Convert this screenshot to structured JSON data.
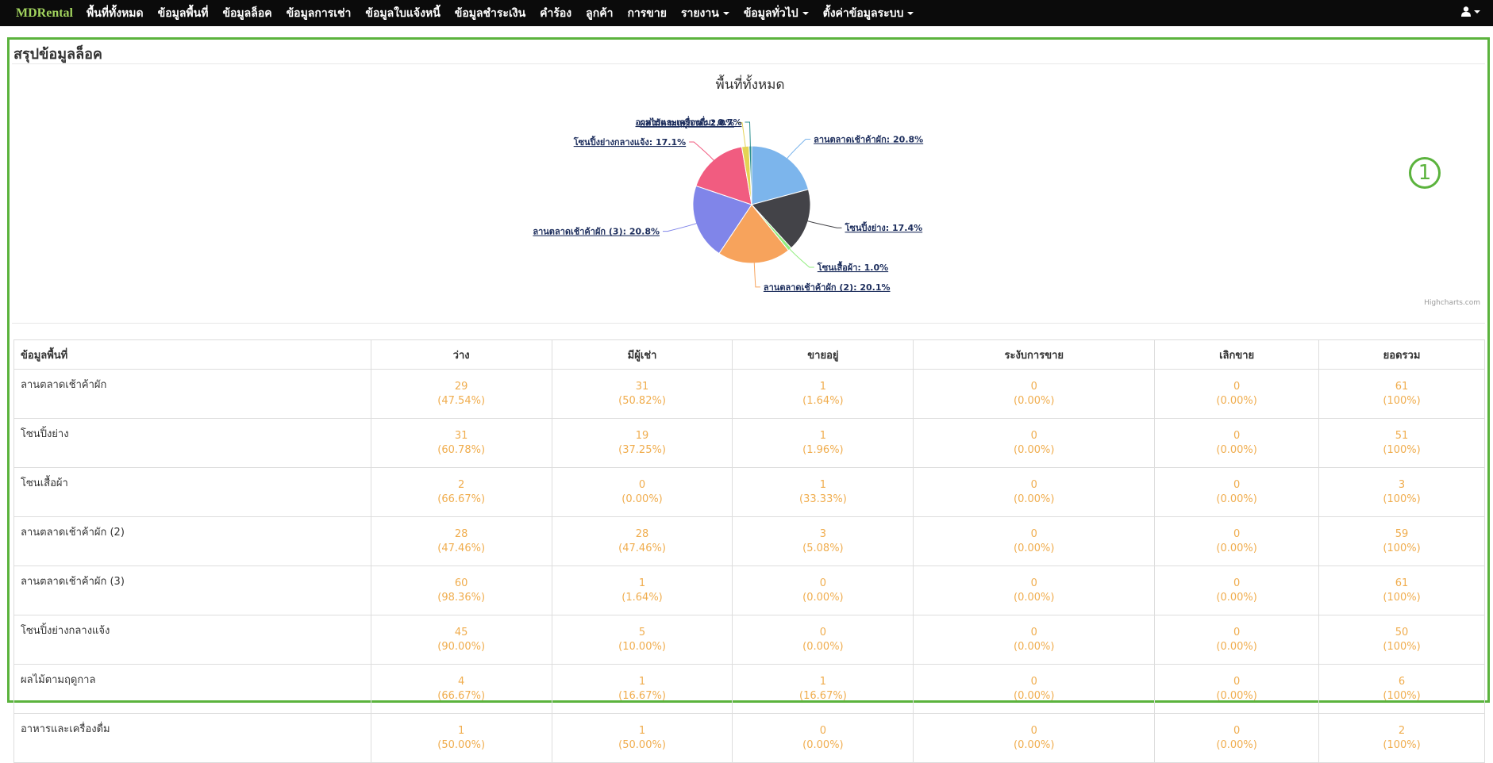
{
  "navbar": {
    "brand": "MDRental",
    "items": [
      {
        "label": "พื้นที่ทั้งหมด",
        "dropdown": false
      },
      {
        "label": "ข้อมูลพื้นที่",
        "dropdown": false
      },
      {
        "label": "ข้อมูลล็อค",
        "dropdown": false
      },
      {
        "label": "ข้อมูลการเช่า",
        "dropdown": false
      },
      {
        "label": "ข้อมูลใบแจ้งหนี้",
        "dropdown": false
      },
      {
        "label": "ข้อมูลชำระเงิน",
        "dropdown": false
      },
      {
        "label": "คำร้อง",
        "dropdown": false
      },
      {
        "label": "ลูกค้า",
        "dropdown": false
      },
      {
        "label": "การขาย",
        "dropdown": false
      },
      {
        "label": "รายงาน",
        "dropdown": true
      },
      {
        "label": "ข้อมูลทั่วไป",
        "dropdown": true
      },
      {
        "label": "ตั้งค่าข้อมูลระบบ",
        "dropdown": true
      }
    ],
    "user_icon": "user-icon"
  },
  "panel": {
    "title": "สรุปข้อมูลล็อค",
    "annotation_number": "1",
    "border_color": "#5bb33d"
  },
  "chart_data": {
    "type": "pie",
    "title": "พื้นที่ทั้งหมด",
    "credits": "Highcharts.com",
    "slices": [
      {
        "name": "ลานตลาดเช้าค้าผัก",
        "value": 20.8,
        "label": "ลานตลาดเช้าค้าผัก: 20.8%",
        "color": "#7cb5ec"
      },
      {
        "name": "โซนปิ้งย่าง",
        "value": 17.4,
        "label": "โซนปิ้งย่าง: 17.4%",
        "color": "#434348"
      },
      {
        "name": "โซนเสื้อผ้า",
        "value": 1.0,
        "label": "โซนเสื้อผ้า: 1.0%",
        "color": "#90ed7d"
      },
      {
        "name": "ลานตลาดเช้าค้าผัก (2)",
        "value": 20.1,
        "label": "ลานตลาดเช้าค้าผัก (2): 20.1%",
        "color": "#f7a35c"
      },
      {
        "name": "ลานตลาดเช้าค้าผัก (3)",
        "value": 20.8,
        "label": "ลานตลาดเช้าค้าผัก (3): 20.8%",
        "color": "#8085e9"
      },
      {
        "name": "โซนปิ้งย่างกลางแจ้ง",
        "value": 17.1,
        "label": "โซนปิ้งย่างกลางแจ้ง: 17.1%",
        "color": "#f15c80"
      },
      {
        "name": "ผลไม้ตามฤดูกาล",
        "value": 2.0,
        "label": "ผลไม้ตามฤดูกาล: 2.0%",
        "color": "#e4d354"
      },
      {
        "name": "อาหารและเครื่องดื่ม",
        "value": 0.7,
        "label": "อาหารและเครื่องดื่ม: 0.7%",
        "color": "#2b908f"
      }
    ]
  },
  "table": {
    "headers": [
      "ข้อมูลพื้นที่",
      "ว่าง",
      "มีผู้เช่า",
      "ขายอยู่",
      "ระงับการขาย",
      "เลิกขาย",
      "ยอดรวม"
    ],
    "rows": [
      {
        "name": "ลานตลาดเช้าค้าผัก",
        "cells": [
          [
            "29",
            "(47.54%)"
          ],
          [
            "31",
            "(50.82%)"
          ],
          [
            "1",
            "(1.64%)"
          ],
          [
            "0",
            "(0.00%)"
          ],
          [
            "0",
            "(0.00%)"
          ],
          [
            "61",
            "(100%)"
          ]
        ]
      },
      {
        "name": "โซนปิ้งย่าง",
        "cells": [
          [
            "31",
            "(60.78%)"
          ],
          [
            "19",
            "(37.25%)"
          ],
          [
            "1",
            "(1.96%)"
          ],
          [
            "0",
            "(0.00%)"
          ],
          [
            "0",
            "(0.00%)"
          ],
          [
            "51",
            "(100%)"
          ]
        ]
      },
      {
        "name": "โซนเสื้อผ้า",
        "cells": [
          [
            "2",
            "(66.67%)"
          ],
          [
            "0",
            "(0.00%)"
          ],
          [
            "1",
            "(33.33%)"
          ],
          [
            "0",
            "(0.00%)"
          ],
          [
            "0",
            "(0.00%)"
          ],
          [
            "3",
            "(100%)"
          ]
        ]
      },
      {
        "name": "ลานตลาดเช้าค้าผัก (2)",
        "cells": [
          [
            "28",
            "(47.46%)"
          ],
          [
            "28",
            "(47.46%)"
          ],
          [
            "3",
            "(5.08%)"
          ],
          [
            "0",
            "(0.00%)"
          ],
          [
            "0",
            "(0.00%)"
          ],
          [
            "59",
            "(100%)"
          ]
        ]
      },
      {
        "name": "ลานตลาดเช้าค้าผัก (3)",
        "cells": [
          [
            "60",
            "(98.36%)"
          ],
          [
            "1",
            "(1.64%)"
          ],
          [
            "0",
            "(0.00%)"
          ],
          [
            "0",
            "(0.00%)"
          ],
          [
            "0",
            "(0.00%)"
          ],
          [
            "61",
            "(100%)"
          ]
        ]
      },
      {
        "name": "โซนปิ้งย่างกลางแจ้ง",
        "cells": [
          [
            "45",
            "(90.00%)"
          ],
          [
            "5",
            "(10.00%)"
          ],
          [
            "0",
            "(0.00%)"
          ],
          [
            "0",
            "(0.00%)"
          ],
          [
            "0",
            "(0.00%)"
          ],
          [
            "50",
            "(100%)"
          ]
        ]
      },
      {
        "name": "ผลไม้ตามฤดูกาล",
        "cells": [
          [
            "4",
            "(66.67%)"
          ],
          [
            "1",
            "(16.67%)"
          ],
          [
            "1",
            "(16.67%)"
          ],
          [
            "0",
            "(0.00%)"
          ],
          [
            "0",
            "(0.00%)"
          ],
          [
            "6",
            "(100%)"
          ]
        ]
      },
      {
        "name": "อาหารและเครื่องดื่ม",
        "cells": [
          [
            "1",
            "(50.00%)"
          ],
          [
            "1",
            "(50.00%)"
          ],
          [
            "0",
            "(0.00%)"
          ],
          [
            "0",
            "(0.00%)"
          ],
          [
            "0",
            "(0.00%)"
          ],
          [
            "2",
            "(100%)"
          ]
        ]
      }
    ]
  }
}
